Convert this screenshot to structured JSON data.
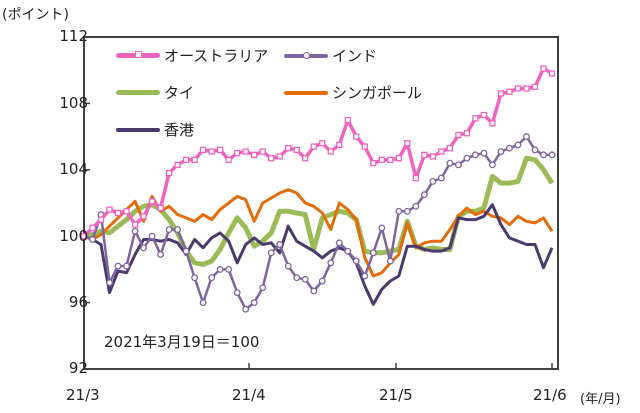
{
  "chart_data": {
    "type": "line",
    "title": "",
    "ylabel": "(ポイント)",
    "xlabel": "(年/月)",
    "note": "2021年3月19日＝100",
    "ylim": [
      92,
      112
    ],
    "yticks": [
      92,
      96,
      100,
      104,
      108,
      112
    ],
    "xticks": [
      "21/3",
      "21/4",
      "21/5",
      "21/6"
    ],
    "xtick_positions": [
      0,
      18.3,
      34.6,
      51.9
    ],
    "grid": false,
    "legend_position": "upper-left-inside",
    "legend": [
      "オーストラリア",
      "インド",
      "タイ",
      "シンガポール",
      "香港"
    ],
    "series": [
      {
        "name": "オーストラリア",
        "color": "#F062C0",
        "marker": "square",
        "values": [
          100,
          100.5,
          101,
          101.6,
          101.4,
          101.5,
          100.7,
          101.2,
          102.1,
          101.7,
          103.8,
          104.3,
          104.6,
          104.6,
          105.2,
          105.1,
          105.2,
          104.6,
          105,
          105.1,
          104.9,
          105.1,
          104.7,
          104.8,
          105.3,
          105.2,
          104.7,
          105.4,
          105.6,
          105.1,
          105.5,
          107,
          106,
          105.4,
          104.4,
          104.6,
          104.6,
          104.7,
          105.6,
          103.5,
          104.9,
          104.8,
          105.1,
          105.3,
          106.1,
          106.2,
          107.1,
          107.3,
          106.8,
          108.6,
          108.7,
          108.9,
          108.9,
          109,
          110.1,
          109.8
        ]
      },
      {
        "name": "インド",
        "color": "#8064A2",
        "marker": "circle",
        "values": [
          100,
          99.8,
          101.3,
          97.2,
          98.2,
          98.2,
          100.3,
          99.3,
          100,
          98.9,
          100.4,
          100.4,
          99.1,
          97.5,
          96,
          97.5,
          98,
          98,
          96.6,
          95.6,
          96,
          96.9,
          99,
          99.5,
          98.2,
          97.5,
          97.4,
          96.7,
          97.3,
          98.4,
          99.6,
          99.1,
          98.5,
          97.6,
          99,
          100.5,
          98.5,
          101.5,
          101.5,
          101.8,
          102.5,
          103.3,
          103.5,
          104.4,
          104.3,
          104.7,
          104.9,
          105,
          104.3,
          105.1,
          105.3,
          105.5,
          106,
          105.2,
          104.9,
          104.9
        ]
      },
      {
        "name": "タイ",
        "color": "#9BBB59",
        "marker": "none",
        "values": [
          100,
          100.1,
          100.3,
          100.2,
          100.6,
          101,
          101.5,
          101.8,
          101.9,
          101.6,
          101,
          100.2,
          99.1,
          98.4,
          98.3,
          98.5,
          99.2,
          100.2,
          101.1,
          100.5,
          99.4,
          99.7,
          100.2,
          101.5,
          101.5,
          101.4,
          101.3,
          99.2,
          101.1,
          101.3,
          101.5,
          101.4,
          101,
          99.1,
          99,
          99,
          99.1,
          99.2,
          100.9,
          99.4,
          99.2,
          99.3,
          99.2,
          99.2,
          101.2,
          101.5,
          101.5,
          101.7,
          103.6,
          103.2,
          103.2,
          103.3,
          104.7,
          104.6,
          104,
          103.2
        ]
      },
      {
        "name": "シンガポール",
        "color": "#E46C0A",
        "marker": "none",
        "values": [
          100,
          99.8,
          100.1,
          100.6,
          101.1,
          101.6,
          102.1,
          100.9,
          102.4,
          101.5,
          101.8,
          101.3,
          101.1,
          100.9,
          101.3,
          101,
          101.6,
          102,
          102.4,
          102.2,
          100.9,
          102,
          102.3,
          102.6,
          102.8,
          102.6,
          102,
          101.8,
          101.4,
          100.4,
          102,
          101.6,
          101,
          98.7,
          97.6,
          97.8,
          98.4,
          98.9,
          100.8,
          99.3,
          99.6,
          99.7,
          99.7,
          100.4,
          101.2,
          101.7,
          101.3,
          101.5,
          101.2,
          101.1,
          100.7,
          101.2,
          100.9,
          100.8,
          101.1,
          100.3
        ]
      },
      {
        "name": "香港",
        "color": "#4B3A6E",
        "marker": "none",
        "values": [
          100,
          99.8,
          99.5,
          96.6,
          97.9,
          97.8,
          98.9,
          99.8,
          99.8,
          99.7,
          99.8,
          99.6,
          98.9,
          99.8,
          99.3,
          99.9,
          100.2,
          99.7,
          98.4,
          99.5,
          99.9,
          99.5,
          99.6,
          99,
          100.6,
          99.7,
          99.4,
          99.1,
          98.7,
          99.1,
          99.3,
          99.1,
          98.4,
          97,
          95.9,
          96.8,
          97.3,
          97.6,
          99.4,
          99.4,
          99.2,
          99.1,
          99.1,
          99.3,
          101.1,
          101,
          101,
          101.2,
          101.9,
          100.7,
          99.9,
          99.7,
          99.5,
          99.5,
          98.1,
          99.3
        ]
      }
    ]
  },
  "axis": {
    "unit_label": "(ポイント)",
    "x_unit_label": "(年/月)",
    "y_labels": [
      "112",
      "108",
      "104",
      "100",
      "96",
      "92"
    ],
    "x_labels": [
      "21/3",
      "21/4",
      "21/5",
      "21/6"
    ]
  },
  "note": "2021年3月19日＝100",
  "legend": [
    {
      "label": "オーストラリア",
      "color": "#F062C0",
      "marker": "square"
    },
    {
      "label": "インド",
      "color": "#8064A2",
      "marker": "circle"
    },
    {
      "label": "タイ",
      "color": "#9BBB59",
      "marker": "none"
    },
    {
      "label": "シンガポール",
      "color": "#E46C0A",
      "marker": "none"
    },
    {
      "label": "香港",
      "color": "#4B3A6E",
      "marker": "none"
    }
  ]
}
